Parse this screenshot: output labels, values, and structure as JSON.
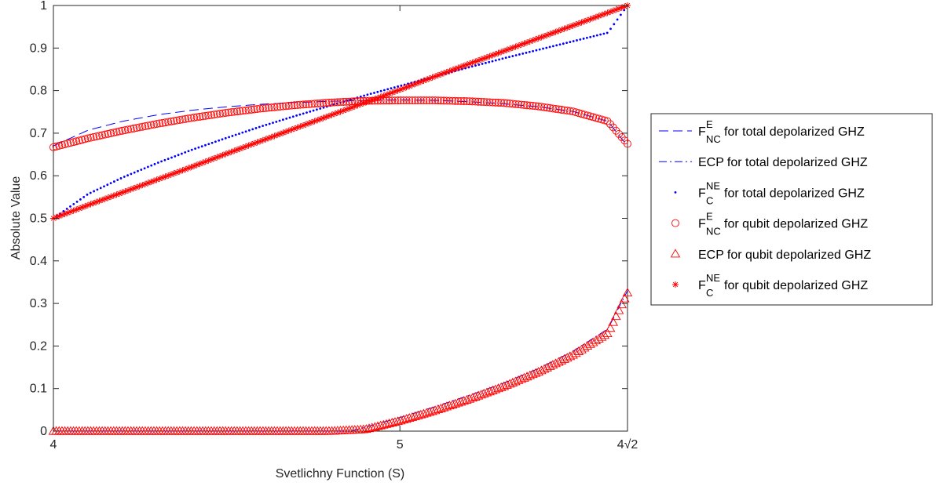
{
  "chart_data": {
    "type": "line",
    "xlabel": "Svetlichny Function (S)",
    "ylabel": "Absolute Value",
    "xlim": [
      4,
      5.656854
    ],
    "ylim": [
      0,
      1
    ],
    "x_ticks": [
      {
        "value": 4,
        "label": "4"
      },
      {
        "value": 5,
        "label": "5"
      },
      {
        "value": 5.656854,
        "label": "4√2"
      }
    ],
    "y_ticks": [
      {
        "value": 0,
        "label": "0"
      },
      {
        "value": 0.1,
        "label": "0.1"
      },
      {
        "value": 0.2,
        "label": "0.2"
      },
      {
        "value": 0.3,
        "label": "0.3"
      },
      {
        "value": 0.4,
        "label": "0.4"
      },
      {
        "value": 0.5,
        "label": "0.5"
      },
      {
        "value": 0.6,
        "label": "0.6"
      },
      {
        "value": 0.7,
        "label": "0.7"
      },
      {
        "value": 0.8,
        "label": "0.8"
      },
      {
        "value": 0.9,
        "label": "0.9"
      },
      {
        "value": 1,
        "label": "1"
      }
    ],
    "grid": false,
    "legend_position": "outside-right",
    "series": [
      {
        "name": "F_NC^E for total depolarized GHZ",
        "legend": {
          "base": "F",
          "sup": "E",
          "sub": "NC",
          "text": "for total depolarized GHZ"
        },
        "color": "#0000ff",
        "style": "dashed",
        "x": [
          4.0,
          4.1,
          4.2,
          4.3,
          4.4,
          4.5,
          4.6,
          4.7,
          4.8,
          4.9,
          5.0,
          5.1,
          5.2,
          5.3,
          5.4,
          5.5,
          5.6,
          5.656854
        ],
        "y": [
          0.67,
          0.707,
          0.728,
          0.743,
          0.754,
          0.762,
          0.768,
          0.772,
          0.775,
          0.777,
          0.778,
          0.777,
          0.774,
          0.769,
          0.762,
          0.751,
          0.728,
          0.67
        ]
      },
      {
        "name": "ECP for total depolarized GHZ",
        "legend": {
          "base": "ECP",
          "sup": "",
          "sub": "",
          "text": "for total depolarized GHZ"
        },
        "color": "#0000ff",
        "style": "dashdot",
        "x": [
          4.0,
          4.1,
          4.2,
          4.3,
          4.4,
          4.5,
          4.6,
          4.7,
          4.8,
          4.86,
          4.9,
          5.0,
          5.1,
          5.2,
          5.3,
          5.4,
          5.5,
          5.6,
          5.656854
        ],
        "y": [
          0,
          0,
          0,
          0,
          0,
          0,
          0,
          0,
          0,
          0,
          0.009,
          0.032,
          0.057,
          0.084,
          0.113,
          0.147,
          0.188,
          0.24,
          0.33
        ]
      },
      {
        "name": "F_C^NE for total depolarized GHZ",
        "legend": {
          "base": "F",
          "sup": "NE",
          "sub": "C",
          "text": "for total depolarized GHZ"
        },
        "color": "#0000ff",
        "style": "dots",
        "x": [
          4.0,
          4.1,
          4.2,
          4.3,
          4.4,
          4.5,
          4.6,
          4.7,
          4.8,
          4.9,
          5.0,
          5.1,
          5.2,
          5.3,
          5.4,
          5.5,
          5.6,
          5.656854
        ],
        "y": [
          0.5,
          0.557,
          0.596,
          0.63,
          0.661,
          0.689,
          0.716,
          0.741,
          0.765,
          0.789,
          0.811,
          0.833,
          0.855,
          0.876,
          0.896,
          0.916,
          0.936,
          1.0
        ]
      },
      {
        "name": "F_NC^E for qubit depolarized GHZ",
        "legend": {
          "base": "F",
          "sup": "E",
          "sub": "NC",
          "text": "for qubit depolarized GHZ"
        },
        "color": "#ff0000",
        "style": "circle",
        "x": [
          4.0,
          4.1,
          4.2,
          4.3,
          4.4,
          4.5,
          4.6,
          4.7,
          4.8,
          4.9,
          5.0,
          5.1,
          5.2,
          5.3,
          5.4,
          5.5,
          5.6,
          5.656854
        ],
        "y": [
          0.667,
          0.688,
          0.706,
          0.722,
          0.736,
          0.748,
          0.758,
          0.766,
          0.772,
          0.776,
          0.777,
          0.777,
          0.775,
          0.771,
          0.763,
          0.751,
          0.728,
          0.675
        ]
      },
      {
        "name": "ECP for qubit depolarized GHZ",
        "legend": {
          "base": "ECP",
          "sup": "",
          "sub": "",
          "text": "for qubit depolarized GHZ"
        },
        "color": "#ff0000",
        "style": "triangle",
        "x": [
          4.0,
          4.1,
          4.2,
          4.3,
          4.4,
          4.5,
          4.6,
          4.7,
          4.8,
          4.9,
          5.0,
          5.1,
          5.2,
          5.3,
          5.4,
          5.5,
          5.6,
          5.656854
        ],
        "y": [
          0,
          0,
          0,
          0,
          0,
          0,
          0,
          0,
          0,
          0.004,
          0.024,
          0.048,
          0.075,
          0.105,
          0.139,
          0.179,
          0.23,
          0.325
        ]
      },
      {
        "name": "F_C^NE for qubit depolarized GHZ",
        "legend": {
          "base": "F",
          "sup": "NE",
          "sub": "C",
          "text": "for qubit depolarized GHZ"
        },
        "color": "#ff0000",
        "style": "star",
        "x": [
          4.0,
          4.1,
          4.2,
          4.3,
          4.4,
          4.5,
          4.6,
          4.7,
          4.8,
          4.9,
          5.0,
          5.1,
          5.2,
          5.3,
          5.4,
          5.5,
          5.6,
          5.656854
        ],
        "y": [
          0.5,
          0.531,
          0.561,
          0.591,
          0.621,
          0.652,
          0.682,
          0.712,
          0.742,
          0.772,
          0.802,
          0.833,
          0.863,
          0.893,
          0.923,
          0.953,
          0.983,
          1.0
        ]
      }
    ]
  }
}
